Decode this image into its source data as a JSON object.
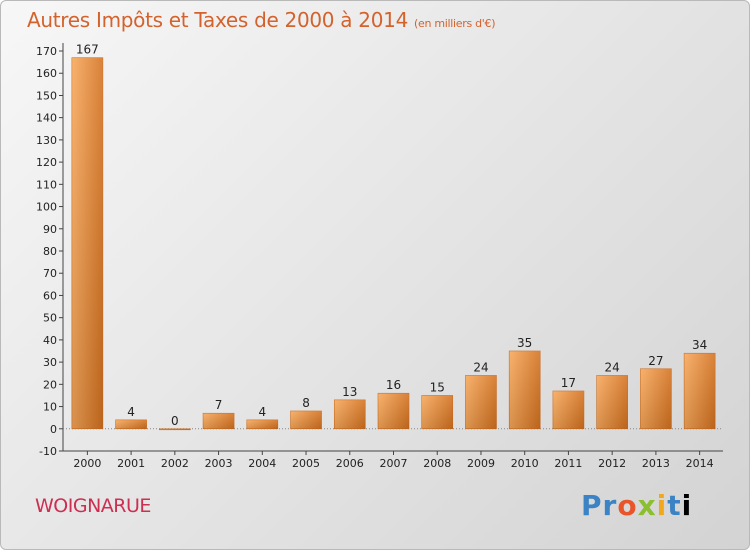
{
  "header": {
    "title": "Autres Impôts et Taxes de 2000 à 2014",
    "unit": "(en milliers d'€)"
  },
  "footer": {
    "commune": "WOIGNARUE",
    "logo": "Proxiti"
  },
  "colors": {
    "bar_light": "#f7a85a",
    "bar_dark": "#d4711f",
    "title": "#d4622c",
    "commune": "#cc2f52"
  },
  "chart_data": {
    "type": "bar",
    "title": "Autres Impôts et Taxes de 2000 à 2014",
    "subtitle": "(en milliers d'€)",
    "categories": [
      "2000",
      "2001",
      "2002",
      "2003",
      "2004",
      "2005",
      "2006",
      "2007",
      "2008",
      "2009",
      "2010",
      "2011",
      "2012",
      "2013",
      "2014"
    ],
    "values": [
      167,
      4,
      0,
      7,
      4,
      8,
      13,
      16,
      15,
      24,
      35,
      17,
      24,
      27,
      34
    ],
    "ylim": [
      -10,
      170
    ],
    "yticks": [
      -10,
      0,
      10,
      20,
      30,
      40,
      50,
      60,
      70,
      80,
      90,
      100,
      110,
      120,
      130,
      140,
      150,
      160,
      170
    ],
    "grid": false,
    "legend": "none"
  }
}
